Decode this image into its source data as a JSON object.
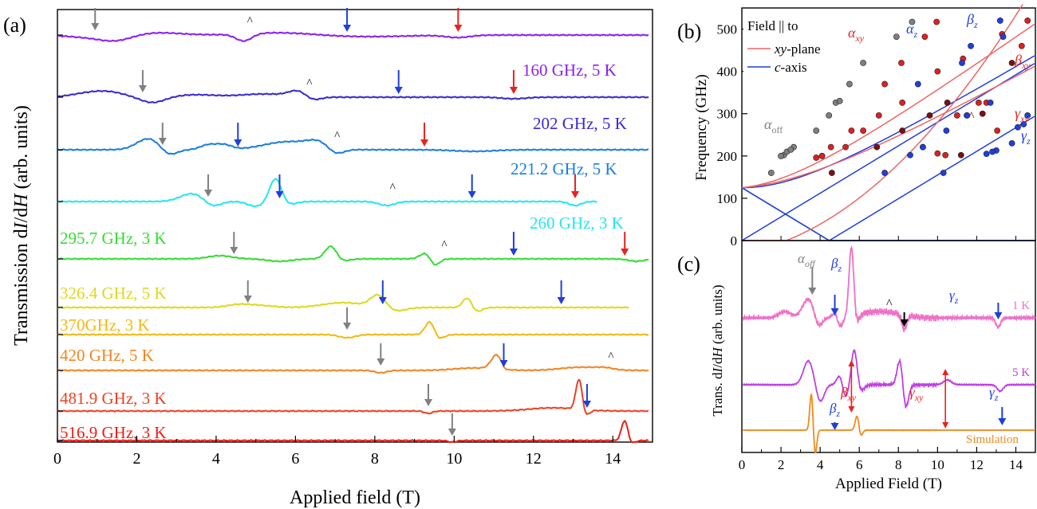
{
  "figure": {
    "panel_a_label": "(a)",
    "panel_b_label": "(b)",
    "panel_c_label": "(c)"
  },
  "colors": {
    "grey_arrow": "#808080",
    "blue_arrow": "#1f3fdb",
    "red_arrow": "#e8231f",
    "xy_line": "#f06464",
    "c_line": "#1f3fdb"
  },
  "chart_data": [
    {
      "panel": "a",
      "type": "line",
      "xlabel": "Applied field (T)",
      "ylabel_main": "Transmission d",
      "ylabel_italic_1": "I",
      "ylabel_mid": "/d",
      "ylabel_italic_2": "H",
      "ylabel_tail": " (arb. units)",
      "xlim": [
        0,
        15
      ],
      "xticks": [
        "0",
        "2",
        "4",
        "6",
        "8",
        "10",
        "12",
        "14"
      ],
      "series": [
        {
          "name": "160 GHz, 5 K",
          "color": "#8a1ef0",
          "xmax": 14.9,
          "grey": 0.95,
          "blue": 7.3,
          "red": 10.1,
          "caret": 4.7,
          "features": [
            [
              0.9,
              -3,
              0.6
            ],
            [
              1.5,
              -6,
              0.4
            ],
            [
              2.5,
              3,
              0.6
            ],
            [
              4.7,
              -9,
              0.2
            ],
            [
              5.6,
              3,
              0.8
            ],
            [
              7.8,
              -2,
              1.0
            ],
            [
              10.1,
              -3,
              0.3
            ]
          ]
        },
        {
          "name": "202 GHz, 5 K",
          "color": "#3a28d0",
          "xmax": 14.9,
          "grey": 2.15,
          "blue": 8.6,
          "red": 11.5,
          "caret": 6.2,
          "features": [
            [
              0.7,
              4,
              0.4
            ],
            [
              1.3,
              6,
              0.4
            ],
            [
              2.4,
              -7,
              0.3
            ],
            [
              3.5,
              3,
              0.5
            ],
            [
              5.2,
              4,
              0.6
            ],
            [
              6.1,
              8,
              0.25
            ],
            [
              6.4,
              -6,
              0.2
            ],
            [
              11.5,
              -2,
              0.3
            ]
          ]
        },
        {
          "name": "221.2 GHz, 5 K",
          "color": "#1a7ee0",
          "xmax": 14.9,
          "grey": 2.65,
          "blue": 4.55,
          "red": 9.25,
          "caret": 6.9,
          "features": [
            [
              2.3,
              14,
              0.3
            ],
            [
              2.8,
              -8,
              0.2
            ],
            [
              3.8,
              6,
              0.2
            ],
            [
              4.2,
              6,
              0.2
            ],
            [
              5.8,
              10,
              0.6
            ],
            [
              6.6,
              8,
              0.3
            ],
            [
              7.0,
              -8,
              0.2
            ],
            [
              10.5,
              -2,
              0.5
            ]
          ]
        },
        {
          "name": "260 GHz, 3 K",
          "color": "#22e6ef",
          "xmax": 13.6,
          "grey": 3.8,
          "blue": 5.6,
          "blue2": 10.45,
          "red": 13.05,
          "caret": 8.3,
          "features": [
            [
              3.4,
              10,
              0.3
            ],
            [
              3.9,
              -7,
              0.2
            ],
            [
              5.0,
              -6,
              0.2
            ],
            [
              5.5,
              30,
              0.15
            ],
            [
              5.8,
              -4,
              0.2
            ],
            [
              8.3,
              -5,
              0.2
            ],
            [
              13.05,
              -5,
              0.15
            ]
          ]
        },
        {
          "name": "295.7 GHz, 3 K",
          "color": "#33dd33",
          "xmax": 14.9,
          "grey": 4.45,
          "blue": 11.5,
          "red": 14.3,
          "caret": 9.6,
          "features": [
            [
              4.1,
              4,
              0.3
            ],
            [
              5.6,
              -3,
              0.3
            ],
            [
              6.9,
              18,
              0.15
            ],
            [
              7.1,
              -4,
              0.2
            ],
            [
              9.3,
              8,
              0.15
            ],
            [
              9.5,
              -10,
              0.12
            ],
            [
              14.6,
              -3,
              0.2
            ]
          ]
        },
        {
          "name": "326.4 GHz, 5 K",
          "color": "#ded81e",
          "xmax": 14.4,
          "grey": 4.8,
          "blue": 8.2,
          "blue2": 12.7,
          "caret": null,
          "features": [
            [
              4.6,
              4,
              0.3
            ],
            [
              5.2,
              2,
              0.3
            ],
            [
              7.2,
              6,
              0.5
            ],
            [
              8.1,
              18,
              0.2
            ],
            [
              8.4,
              -6,
              0.3
            ],
            [
              10.35,
              16,
              0.12
            ],
            [
              10.5,
              -8,
              0.15
            ]
          ]
        },
        {
          "name": "370GHz, 3 K",
          "color": "#f5b80e",
          "xmax": 14.9,
          "grey": 7.3,
          "blue": null,
          "caret": null,
          "features": [
            [
              7.3,
              -4,
              0.2
            ],
            [
              9.4,
              20,
              0.12
            ],
            [
              9.55,
              -8,
              0.15
            ]
          ]
        },
        {
          "name": "420 GHz, 5 K",
          "color": "#f28520",
          "xmax": 14.9,
          "grey": 8.15,
          "blue": 11.25,
          "caret": 13.8,
          "features": [
            [
              8.15,
              -3,
              0.15
            ],
            [
              10.5,
              3,
              0.5
            ],
            [
              11.1,
              20,
              0.15
            ],
            [
              11.25,
              -8,
              0.1
            ],
            [
              13.2,
              4,
              0.5
            ],
            [
              13.8,
              2,
              0.2
            ]
          ]
        },
        {
          "name": "481.9 GHz, 3 K",
          "color": "#ee4022",
          "xmax": 14.9,
          "grey": 9.35,
          "blue": 13.35,
          "caret": null,
          "features": [
            [
              9.35,
              -3,
              0.1
            ],
            [
              12.5,
              4,
              0.6
            ],
            [
              13.15,
              40,
              0.08
            ],
            [
              13.3,
              -8,
              0.1
            ]
          ]
        },
        {
          "name": "516.9 GHz, 3 K",
          "color": "#ee1e16",
          "xmax": 14.9,
          "grey": 9.95,
          "blue": null,
          "caret": null,
          "features": [
            [
              9.95,
              -2,
              0.1
            ],
            [
              14.3,
              26,
              0.08
            ],
            [
              14.45,
              -4,
              0.1
            ]
          ]
        }
      ]
    },
    {
      "panel": "b",
      "type": "scatter",
      "xlabel": "",
      "ylabel": "Frequency (GHz)",
      "xlim": [
        0,
        15
      ],
      "ylim": [
        0,
        550
      ],
      "yticks": [
        "0",
        "100",
        "200",
        "300",
        "400",
        "500"
      ],
      "legend_title": "Field || to",
      "legend_xy_prefix": "",
      "legend_xy_italic": "xy",
      "legend_xy_suffix": "-plane",
      "legend_c_italic": "c",
      "legend_c_suffix": "-axis",
      "labels": {
        "alpha_xy": "α",
        "alpha_xy_sub": "xy",
        "alpha_z": "α",
        "alpha_z_sub": "z",
        "beta_z": "β",
        "beta_z_sub": "z",
        "beta_xy": "β",
        "beta_xy_sub": "xy",
        "gamma_xy": "γ",
        "gamma_xy_sub": "xy",
        "gamma_z": "γ",
        "gamma_z_sub": "z",
        "alpha_off": "α",
        "alpha_off_sub": "off",
        "caret": "^"
      },
      "grey_points": [
        [
          1.5,
          160
        ],
        [
          2.15,
          202
        ],
        [
          2.65,
          221
        ],
        [
          2.3,
          210
        ],
        [
          3.8,
          260
        ],
        [
          4.45,
          296
        ],
        [
          4.8,
          326
        ],
        [
          5.0,
          330
        ],
        [
          5.5,
          370
        ],
        [
          6.2,
          420
        ],
        [
          7.9,
          482
        ],
        [
          8.7,
          517
        ],
        [
          2.0,
          200
        ],
        [
          2.5,
          215
        ]
      ],
      "red_points": [
        [
          4.55,
          221
        ],
        [
          5.6,
          260
        ],
        [
          7.3,
          370
        ],
        [
          8.15,
          420
        ],
        [
          9.35,
          482
        ],
        [
          9.95,
          517
        ],
        [
          11.5,
          296
        ],
        [
          13.05,
          260
        ],
        [
          11.0,
          296
        ],
        [
          8.2,
          326
        ],
        [
          7.0,
          296
        ],
        [
          6.2,
          260
        ],
        [
          5.3,
          221
        ],
        [
          4.1,
          200
        ],
        [
          3.8,
          196
        ],
        [
          10.0,
          400
        ],
        [
          12.1,
          326
        ],
        [
          14.3,
          460
        ],
        [
          13.3,
          488
        ],
        [
          14.6,
          520
        ],
        [
          11.3,
          430
        ],
        [
          10.4,
          202
        ],
        [
          10.0,
          206
        ],
        [
          9.25,
          221
        ],
        [
          12.5,
          326
        ]
      ],
      "dark_red_points": [
        [
          4.6,
          160
        ],
        [
          6.9,
          221
        ],
        [
          8.2,
          260
        ],
        [
          9.6,
          296
        ],
        [
          10.5,
          326
        ],
        [
          13.8,
          420
        ],
        [
          11.2,
          202
        ],
        [
          12.3,
          300
        ]
      ],
      "blue_points": [
        [
          7.3,
          160
        ],
        [
          8.6,
          202
        ],
        [
          9.25,
          221
        ],
        [
          10.45,
          260
        ],
        [
          11.5,
          296
        ],
        [
          12.7,
          326
        ],
        [
          11.25,
          420
        ],
        [
          13.35,
          482
        ],
        [
          13.2,
          520
        ],
        [
          14.6,
          296
        ],
        [
          14.4,
          275
        ],
        [
          14.1,
          268
        ],
        [
          13.8,
          230
        ],
        [
          13.0,
          213
        ],
        [
          12.5,
          205
        ],
        [
          10.3,
          160
        ],
        [
          12.8,
          210
        ],
        [
          9.0,
          370
        ],
        [
          11.7,
          460
        ]
      ]
    },
    {
      "panel": "c",
      "type": "line",
      "xlabel": "Applied Field (T)",
      "ylabel_main": "Trans. d",
      "ylabel_italic_1": "I",
      "ylabel_mid": "/d",
      "ylabel_italic_2": "H",
      "ylabel_tail": " (arb. units)",
      "xlim": [
        0,
        15
      ],
      "xticks": [
        "0",
        "2",
        "4",
        "6",
        "8",
        "10",
        "12",
        "14"
      ],
      "series": [
        {
          "name": "1 K",
          "color": "#ee70c8"
        },
        {
          "name": "5 K",
          "color": "#c040e0"
        },
        {
          "name": "Simulation",
          "color": "#f08a1e"
        }
      ],
      "labels": {
        "alpha_off": "α",
        "alpha_off_sub": "off",
        "beta_z": "β",
        "beta_z_sub": "z",
        "beta_xy": "β",
        "beta_xy_sub": "xy",
        "gamma_z": "γ",
        "gamma_z_sub": "z",
        "gamma_xy": "γ",
        "gamma_xy_sub": "xy",
        "caret": "^"
      }
    }
  ]
}
